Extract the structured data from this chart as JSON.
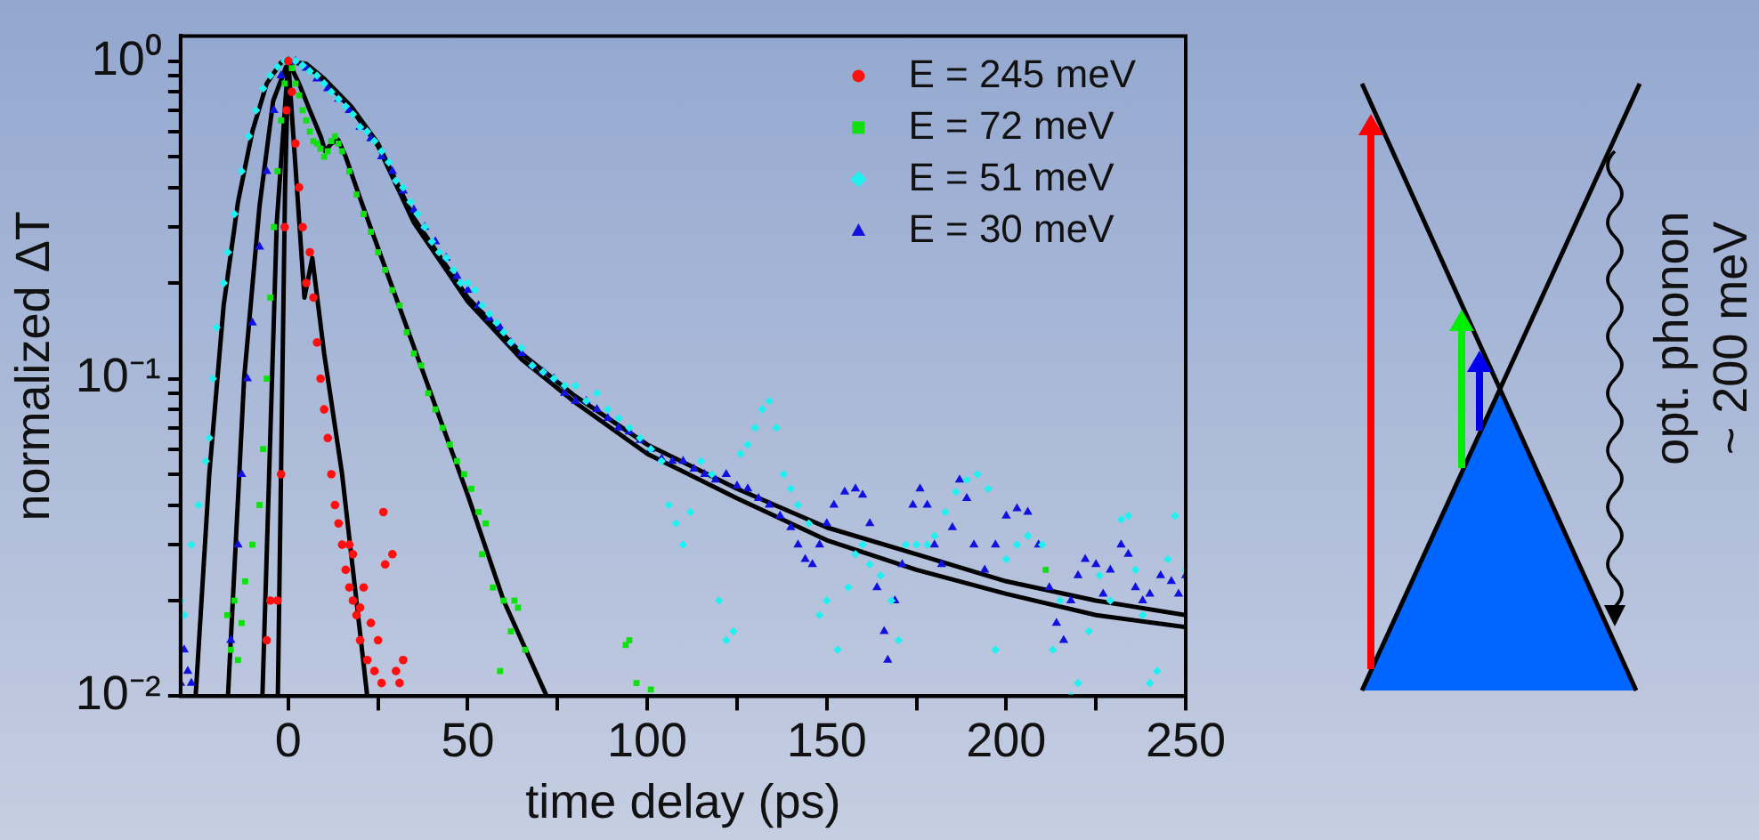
{
  "chart_data": {
    "type": "scatter",
    "xlabel": "time delay (ps)",
    "ylabel": "normalized ΔT",
    "log": "y",
    "grid": false,
    "legend": "top right",
    "xlim": [
      -30,
      250
    ],
    "xticks": [
      0,
      50,
      100,
      150,
      200,
      250,
      {
        "value": 25,
        "label": null
      },
      {
        "value": 75,
        "label": null
      },
      {
        "value": 125,
        "label": null
      },
      {
        "value": 175,
        "label": null
      },
      {
        "value": 225,
        "label": null
      }
    ],
    "ylim": [
      0.01,
      1.2
    ],
    "yticks": [
      {
        "value": 0.01,
        "label": "10⁻²"
      },
      {
        "value": 0.1,
        "label": "10⁻¹"
      },
      {
        "value": 1,
        "label": "10⁰"
      },
      {
        "value": 0.02,
        "label": null
      },
      {
        "value": 0.03,
        "label": null
      },
      {
        "value": 0.04,
        "label": null
      },
      {
        "value": 0.05,
        "label": null
      },
      {
        "value": 0.06,
        "label": null
      },
      {
        "value": 0.07,
        "label": null
      },
      {
        "value": 0.08,
        "label": null
      },
      {
        "value": 0.09,
        "label": null
      },
      {
        "value": 0.2,
        "label": null
      },
      {
        "value": 0.3,
        "label": null
      },
      {
        "value": 0.4,
        "label": null
      },
      {
        "value": 0.5,
        "label": null
      },
      {
        "value": 0.6,
        "label": null
      },
      {
        "value": 0.7,
        "label": null
      },
      {
        "value": 0.8,
        "label": null
      },
      {
        "value": 0.9,
        "label": null
      }
    ],
    "annotations": [
      "opt. phonon",
      "~ 200 meV"
    ],
    "series": [
      {
        "name": "E = 245 meV",
        "marker": "circle",
        "color": "#ff1010",
        "x": [
          -6,
          -5,
          -3,
          -2,
          -1,
          -0.5,
          0,
          1,
          2,
          3,
          4,
          5,
          6,
          7,
          8,
          9,
          10,
          11,
          12,
          13,
          14,
          15,
          16,
          17,
          17,
          18,
          18,
          19,
          20,
          20,
          21,
          22,
          23,
          24,
          25,
          26,
          26.5,
          27,
          29,
          30,
          31,
          32
        ],
        "values": [
          0.015,
          0.02,
          0.02,
          0.05,
          0.3,
          0.7,
          1.0,
          0.8,
          0.55,
          0.4,
          0.3,
          0.2,
          0.25,
          0.18,
          0.13,
          0.1,
          0.08,
          0.065,
          0.05,
          0.04,
          0.035,
          0.03,
          0.025,
          0.022,
          0.03,
          0.02,
          0.028,
          0.018,
          0.015,
          0.019,
          0.022,
          0.013,
          0.017,
          0.012,
          0.015,
          0.011,
          0.038,
          0.026,
          0.028,
          0.012,
          0.011,
          0.013
        ]
      },
      {
        "name": "E = 72 meV",
        "marker": "square",
        "color": "#10e010",
        "x": [
          -17,
          -16,
          -15,
          -14,
          -13,
          -12,
          -10,
          -8,
          -7,
          -6,
          -5,
          -4,
          -3,
          -2,
          -1,
          0,
          1,
          2,
          3,
          4,
          5,
          6,
          7,
          8,
          9,
          10,
          11,
          12,
          13,
          14,
          15,
          17,
          19,
          21,
          23,
          25,
          27,
          29,
          31,
          33,
          35,
          37,
          39,
          41,
          43,
          45,
          47,
          49,
          51,
          53,
          54,
          55,
          57,
          59,
          60,
          62,
          63,
          64,
          66,
          94,
          95,
          97,
          101,
          211
        ],
        "values": [
          0.018,
          0.014,
          0.02,
          0.013,
          0.017,
          0.023,
          0.03,
          0.04,
          0.06,
          0.1,
          0.18,
          0.3,
          0.45,
          0.65,
          0.85,
          1.0,
          0.95,
          0.85,
          0.78,
          0.7,
          0.65,
          0.6,
          0.56,
          0.55,
          0.53,
          0.5,
          0.52,
          0.56,
          0.58,
          0.55,
          0.52,
          0.45,
          0.38,
          0.33,
          0.29,
          0.25,
          0.22,
          0.19,
          0.17,
          0.14,
          0.12,
          0.11,
          0.09,
          0.08,
          0.07,
          0.062,
          0.055,
          0.05,
          0.045,
          0.038,
          0.028,
          0.035,
          0.022,
          0.012,
          0.02,
          0.016,
          0.02,
          0.019,
          0.014,
          0.0145,
          0.015,
          0.011,
          0.0105,
          0.025
        ]
      },
      {
        "name": "E = 51 meV",
        "marker": "diamond",
        "color": "#20f0f0",
        "x": [
          -30,
          -29,
          -27,
          -25,
          -23,
          -22,
          -21,
          -20,
          -18,
          -16.8,
          -15,
          -13,
          -11,
          -9,
          -7,
          -5,
          -3,
          -1,
          2,
          4,
          6,
          8,
          10,
          12,
          14,
          16,
          18,
          20,
          22,
          24,
          26,
          28,
          30,
          32,
          34,
          36,
          38,
          40,
          42,
          44,
          46,
          48,
          50,
          52,
          54,
          56,
          58,
          60,
          62,
          65,
          68,
          71,
          74,
          77,
          80,
          83,
          86,
          89,
          92,
          95,
          98,
          101,
          104,
          106,
          108,
          110,
          112,
          115,
          118,
          120,
          122,
          124,
          126,
          128,
          130,
          132,
          134,
          136,
          138,
          140,
          142,
          145,
          148,
          150,
          153,
          156,
          158,
          160,
          162,
          165,
          168,
          170,
          172,
          175,
          178,
          180,
          183,
          186,
          189,
          192,
          195,
          197,
          200,
          203,
          206,
          210,
          213,
          215,
          218,
          220,
          223,
          226,
          229,
          232,
          234,
          236,
          238,
          240,
          242,
          245,
          247,
          250
        ],
        "values": [
          0.02,
          0.018,
          0.03,
          0.04,
          0.055,
          0.065,
          0.1,
          0.145,
          0.2,
          0.25,
          0.33,
          0.45,
          0.58,
          0.7,
          0.82,
          0.9,
          0.96,
          1.0,
          1.0,
          0.97,
          0.93,
          0.9,
          0.85,
          0.8,
          0.76,
          0.72,
          0.68,
          0.62,
          0.6,
          0.56,
          0.52,
          0.48,
          0.42,
          0.4,
          0.36,
          0.33,
          0.3,
          0.27,
          0.25,
          0.24,
          0.22,
          0.2,
          0.2,
          0.19,
          0.17,
          0.16,
          0.15,
          0.14,
          0.13,
          0.125,
          0.11,
          0.105,
          0.1,
          0.095,
          0.095,
          0.085,
          0.09,
          0.08,
          0.075,
          0.07,
          0.065,
          0.06,
          0.055,
          0.04,
          0.035,
          0.03,
          0.038,
          0.055,
          0.05,
          0.02,
          0.015,
          0.016,
          0.058,
          0.062,
          0.07,
          0.08,
          0.085,
          0.07,
          0.05,
          0.045,
          0.04,
          0.035,
          0.018,
          0.02,
          0.014,
          0.022,
          0.028,
          0.03,
          0.026,
          0.024,
          0.02,
          0.015,
          0.03,
          0.03,
          0.03,
          0.032,
          0.038,
          0.044,
          0.048,
          0.05,
          0.045,
          0.014,
          0.027,
          0.03,
          0.032,
          0.03,
          0.014,
          0.02,
          0.01,
          0.011,
          0.016,
          0.024,
          0.02,
          0.036,
          0.037,
          0.025,
          0.018,
          0.011,
          0.012,
          0.027,
          0.037,
          0.025
        ]
      },
      {
        "name": "E = 30 meV",
        "marker": "triangle",
        "color": "#1010e0",
        "x": [
          -30,
          -29,
          -28,
          -27,
          -16,
          -14,
          -13,
          -11.4,
          -10,
          -8,
          -6,
          -4,
          -2,
          0,
          2,
          5,
          8,
          11,
          14,
          17,
          20,
          23,
          26,
          29,
          32,
          35,
          38,
          41,
          44,
          47,
          50,
          53,
          56,
          59,
          62,
          65,
          68,
          71,
          74,
          77,
          80,
          83,
          86,
          89,
          92,
          95,
          98,
          101,
          104,
          107,
          110,
          113,
          116,
          119,
          122,
          125,
          128,
          131,
          134,
          137,
          140,
          142,
          144,
          146,
          148,
          150,
          152,
          155,
          158,
          160,
          162,
          164,
          166,
          167,
          169,
          171,
          174,
          176,
          178,
          180,
          182,
          185,
          187,
          189,
          191,
          194,
          197,
          200,
          203,
          206,
          209,
          212,
          214,
          216,
          218,
          220,
          222,
          225,
          227,
          229,
          232,
          234,
          236,
          238,
          240,
          243,
          246,
          248,
          250
        ],
        "values": [
          0.011,
          0.014,
          0.012,
          0.011,
          0.015,
          0.03,
          0.05,
          0.1,
          0.15,
          0.26,
          0.45,
          0.7,
          0.9,
          1.0,
          1.0,
          0.95,
          0.88,
          0.82,
          0.76,
          0.7,
          0.62,
          0.57,
          0.5,
          0.45,
          0.39,
          0.34,
          0.3,
          0.27,
          0.24,
          0.21,
          0.19,
          0.17,
          0.155,
          0.145,
          0.13,
          0.12,
          0.11,
          0.105,
          0.1,
          0.09,
          0.085,
          0.085,
          0.08,
          0.075,
          0.07,
          0.068,
          0.064,
          0.06,
          0.056,
          0.055,
          0.055,
          0.052,
          0.05,
          0.048,
          0.05,
          0.046,
          0.045,
          0.042,
          0.04,
          0.037,
          0.034,
          0.03,
          0.027,
          0.026,
          0.03,
          0.035,
          0.04,
          0.044,
          0.045,
          0.043,
          0.035,
          0.022,
          0.016,
          0.013,
          0.02,
          0.026,
          0.04,
          0.045,
          0.04,
          0.03,
          0.026,
          0.034,
          0.048,
          0.042,
          0.03,
          0.025,
          0.03,
          0.037,
          0.039,
          0.038,
          0.03,
          0.022,
          0.017,
          0.015,
          0.02,
          0.024,
          0.027,
          0.026,
          0.021,
          0.025,
          0.03,
          0.028,
          0.022,
          0.02,
          0.021,
          0.024,
          0.023,
          0.021,
          0.024
        ]
      },
      {
        "type": "line",
        "marker": "none",
        "color": "#000000",
        "x": [
          -2.9,
          -0.9,
          0,
          4.5,
          6.7,
          10,
          15,
          22
        ],
        "values": [
          0.01,
          0.39,
          1.0,
          0.18,
          0.24,
          0.12,
          0.05,
          0.01
        ]
      },
      {
        "type": "line",
        "marker": "none",
        "color": "#000000",
        "x": [
          -7.2,
          -3.2,
          0,
          3,
          6,
          9,
          10.3,
          12,
          13.9,
          16,
          20,
          27.4,
          37.4,
          50,
          60,
          72
        ],
        "values": [
          0.01,
          0.31,
          1.0,
          0.85,
          0.7,
          0.58,
          0.52,
          0.55,
          0.565,
          0.5,
          0.37,
          0.217,
          0.106,
          0.043,
          0.02,
          0.01
        ]
      },
      {
        "type": "line",
        "marker": "none",
        "color": "#000000",
        "x": [
          -25.8,
          -22,
          -18,
          -14,
          -10,
          -6,
          -2,
          0,
          5,
          10,
          17.5,
          25,
          35,
          50,
          65,
          80,
          100,
          125,
          150,
          175,
          200,
          225,
          250
        ],
        "values": [
          0.01,
          0.05,
          0.17,
          0.36,
          0.6,
          0.85,
          0.99,
          1.0,
          0.98,
          0.88,
          0.72,
          0.55,
          0.32,
          0.18,
          0.12,
          0.088,
          0.062,
          0.045,
          0.034,
          0.028,
          0.023,
          0.02,
          0.018
        ]
      },
      {
        "type": "line",
        "marker": "none",
        "color": "#000000",
        "x": [
          -16.8,
          -12.3,
          -8,
          -4.2,
          0,
          5,
          10,
          17.5,
          25,
          35,
          50,
          65,
          80,
          100,
          125,
          150,
          175,
          200,
          225,
          250
        ],
        "values": [
          0.01,
          0.1,
          0.35,
          0.75,
          1.0,
          0.97,
          0.87,
          0.71,
          0.54,
          0.31,
          0.175,
          0.115,
          0.084,
          0.058,
          0.042,
          0.031,
          0.025,
          0.021,
          0.018,
          0.0165
        ]
      }
    ]
  }
}
